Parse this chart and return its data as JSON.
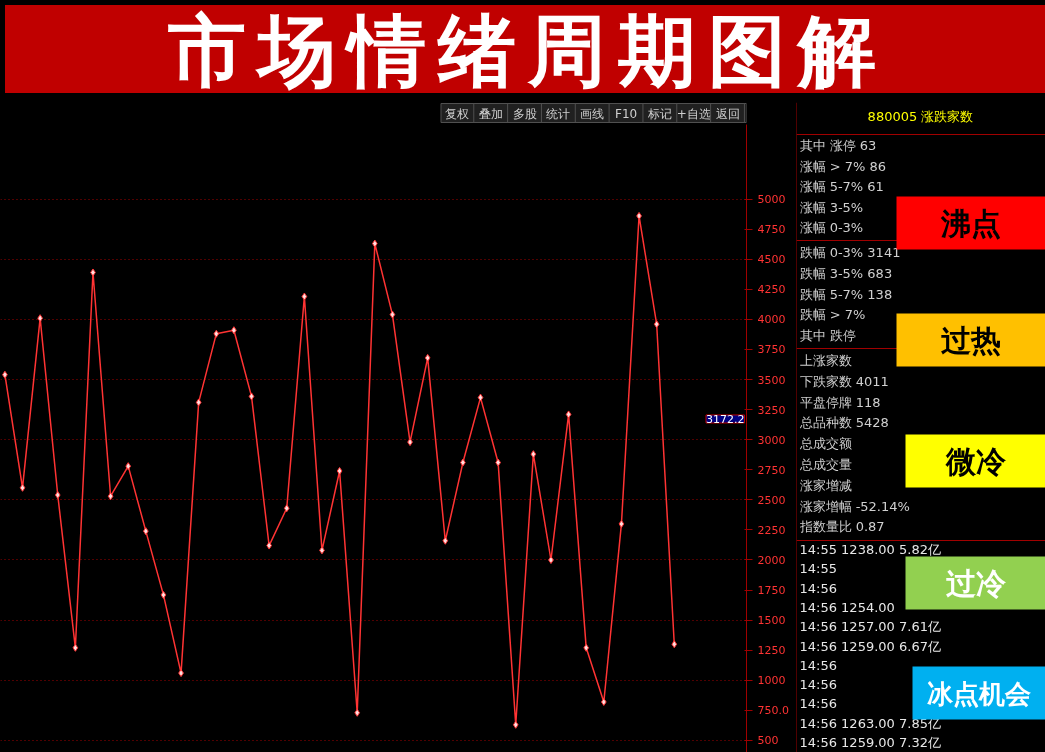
{
  "chart_data": {
    "type": "line",
    "title": "市场情绪周期图解",
    "categories": [
      null,
      null,
      null,
      null,
      null,
      null,
      null,
      null,
      null,
      null,
      null,
      null,
      null,
      null,
      null,
      null,
      null,
      null,
      null,
      null,
      null,
      null,
      null,
      null,
      null,
      null,
      null,
      null,
      null,
      null,
      null,
      null,
      null,
      null,
      null,
      null,
      null,
      null,
      null
    ],
    "series": [
      {
        "color": "#ff3333",
        "values": [
          3540,
          2600,
          4010,
          2540,
          1270,
          4390,
          2530,
          2780,
          2240,
          1710,
          1060,
          3310,
          3880,
          3910,
          3360,
          2120,
          2430,
          4190,
          2080,
          2740,
          730,
          4630,
          4040,
          2980,
          3680,
          2160,
          2810,
          3350,
          2810,
          630,
          2880,
          2000,
          3210,
          1270,
          820,
          2300,
          4860,
          3960,
          1300
        ]
      }
    ],
    "ylim": [
      350,
      5620
    ],
    "yticks": [
      500,
      {
        "value": 750,
        "label": "750.0"
      },
      1000,
      1250,
      1500,
      1750,
      2000,
      2250,
      2500,
      2750,
      3000,
      3250,
      3500,
      3750,
      4000,
      4250,
      4500,
      4750,
      5000
    ],
    "grid": "y",
    "marker": "diamond",
    "line_style": "solid",
    "tick_labels": "y",
    "annotations": [
      "复权",
      "叠加",
      "多股",
      "统计",
      "画线",
      "F10",
      "标记",
      "+自选",
      "返回",
      "880005 涨跌家数",
      "其中 涨停 63",
      "涨幅 > 7% 86",
      "涨幅 5-7% 61",
      "涨幅 3-5%",
      "涨幅 0-3%",
      "跌幅 0-3% 3141",
      "跌幅 3-5% 683",
      "跌幅 5-7% 138",
      "跌幅 > 7%",
      "其中 跌停",
      "上涨家数",
      "下跌家数 4011",
      "平盘停牌 118",
      "总品种数 5428",
      "总成交额",
      "总成交量",
      "涨家增减",
      "涨家增幅 -52.14%",
      "指数量比 0.87",
      "14:55 1238.00 5.82亿",
      "14:55",
      "14:56",
      "14:56 1254.00",
      "14:56 1257.00 7.61亿",
      "14:56 1259.00 6.67亿",
      "14:56",
      "14:56",
      "14:56",
      "14:56 1263.00 7.85亿",
      "14:56 1259.00 7.32亿",
      "3172.2",
      "沸点",
      "过热",
      "微冷",
      "过冷",
      "冰点机会"
    ]
  }
}
